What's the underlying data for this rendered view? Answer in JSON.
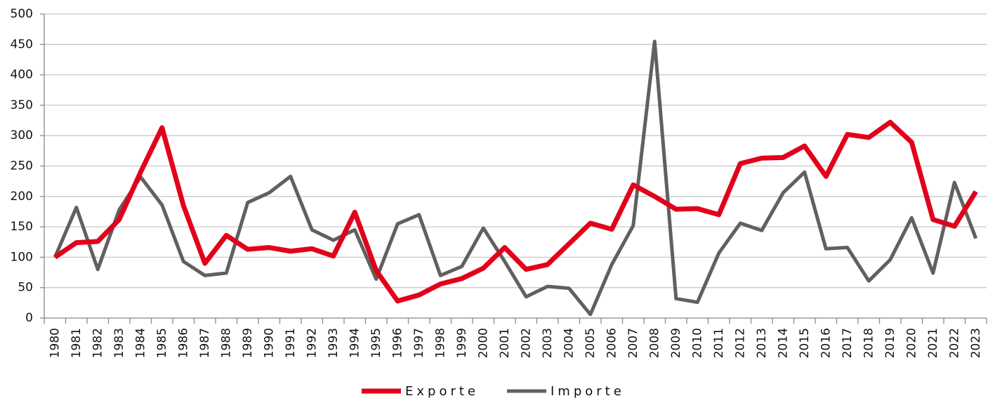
{
  "chart_data": {
    "type": "line",
    "categories": [
      "1980",
      "1981",
      "1982",
      "1983",
      "1984",
      "1985",
      "1986",
      "1987",
      "1988",
      "1989",
      "1990",
      "1991",
      "1992",
      "1993",
      "1994",
      "1995",
      "1996",
      "1997",
      "1998",
      "1999",
      "2000",
      "2001",
      "2002",
      "2003",
      "2004",
      "2005",
      "2006",
      "2007",
      "2008",
      "2009",
      "2010",
      "2011",
      "2012",
      "2013",
      "2014",
      "2015",
      "2016",
      "2017",
      "2018",
      "2019",
      "2020",
      "2021",
      "2022",
      "2023"
    ],
    "series": [
      {
        "name": "Exporte",
        "color": "#e2001a",
        "values": [
          100,
          124,
          126,
          162,
          240,
          313,
          185,
          90,
          136,
          113,
          116,
          110,
          114,
          102,
          174,
          78,
          28,
          38,
          56,
          65,
          82,
          116,
          80,
          88,
          122,
          156,
          146,
          219,
          200,
          179,
          180,
          170,
          254,
          263,
          264,
          283,
          233,
          302,
          297,
          322,
          289,
          162,
          151,
          208
        ]
      },
      {
        "name": "Importe",
        "color": "#606060",
        "values": [
          100,
          182,
          80,
          178,
          232,
          186,
          93,
          70,
          74,
          190,
          206,
          233,
          145,
          128,
          145,
          64,
          155,
          170,
          70,
          85,
          148,
          93,
          35,
          52,
          49,
          6,
          88,
          152,
          455,
          32,
          26,
          107,
          156,
          144,
          206,
          240,
          114,
          116,
          61,
          96,
          165,
          74,
          223,
          131
        ]
      }
    ],
    "ylim": [
      0,
      500
    ],
    "yticks": [
      0,
      50,
      100,
      150,
      200,
      250,
      300,
      350,
      400,
      450,
      500
    ],
    "grid": true,
    "legend": "bottom"
  }
}
